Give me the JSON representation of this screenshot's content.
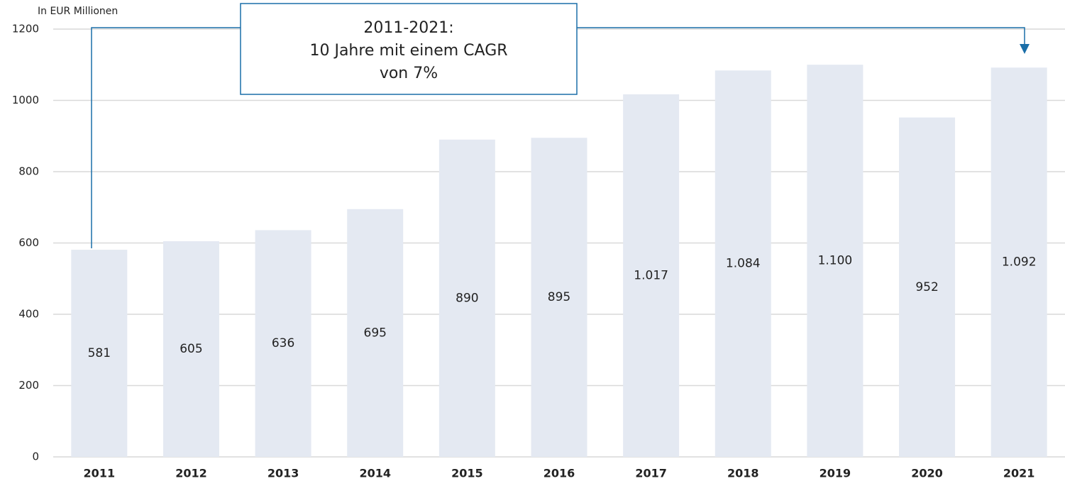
{
  "chart_data": {
    "type": "bar",
    "unit_label": "In EUR Millionen",
    "annotation": [
      "2011-2021:",
      "10 Jahre mit einem CAGR",
      "von 7%"
    ],
    "categories": [
      "2011",
      "2012",
      "2013",
      "2014",
      "2015",
      "2016",
      "2017",
      "2018",
      "2019",
      "2020",
      "2021"
    ],
    "values": [
      581,
      605,
      636,
      695,
      890,
      895,
      1017,
      1084,
      1100,
      952,
      1092
    ],
    "value_labels": [
      "581",
      "605",
      "636",
      "695",
      "890",
      "895",
      "1.017",
      "1.084",
      "1.100",
      "952",
      "1.092"
    ],
    "color": "#e4e9f2",
    "ylim": [
      0,
      1200
    ],
    "yticks": [
      0,
      200,
      400,
      600,
      800,
      1000,
      1200
    ],
    "grid": true
  }
}
